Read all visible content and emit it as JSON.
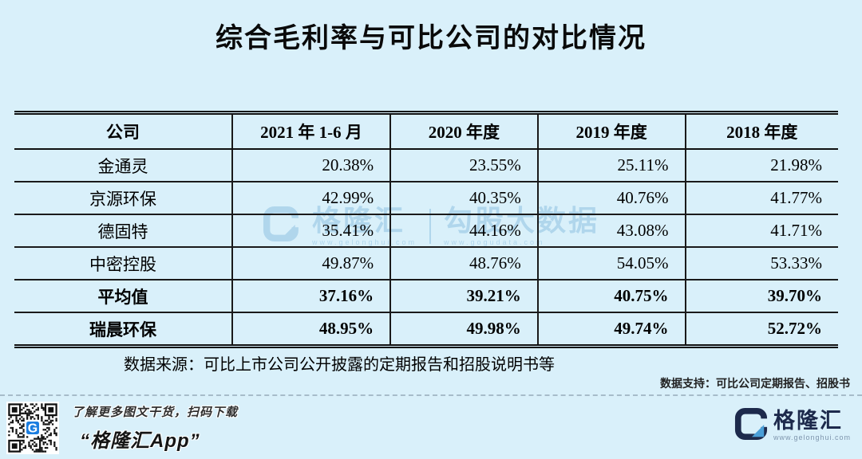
{
  "page": {
    "title": "综合毛利率与可比公司的对比情况",
    "background_color": "#d9f0fa"
  },
  "table": {
    "columns": [
      "公司",
      "2021 年 1-6 月",
      "2020 年度",
      "2019 年度",
      "2018 年度"
    ],
    "rows": [
      {
        "company": "金通灵",
        "values": [
          "20.38%",
          "23.55%",
          "25.11%",
          "21.98%"
        ],
        "bold": false
      },
      {
        "company": "京源环保",
        "values": [
          "42.99%",
          "40.35%",
          "40.76%",
          "41.77%"
        ],
        "bold": false
      },
      {
        "company": "德固特",
        "values": [
          "35.41%",
          "44.16%",
          "43.08%",
          "41.71%"
        ],
        "bold": false
      },
      {
        "company": "中密控股",
        "values": [
          "49.87%",
          "48.76%",
          "54.05%",
          "53.33%"
        ],
        "bold": false
      },
      {
        "company": "平均值",
        "values": [
          "37.16%",
          "39.21%",
          "40.75%",
          "39.70%"
        ],
        "bold": true
      },
      {
        "company": "瑞晨环保",
        "values": [
          "48.95%",
          "49.98%",
          "49.74%",
          "52.72%"
        ],
        "bold": true
      }
    ],
    "source_note": "数据来源：可比上市公司公开披露的定期报告和招股说明书等"
  },
  "support_note": "数据支持：可比公司定期报告、招股书",
  "watermark": {
    "brand_name": "格隆汇",
    "brand_url": "www.gelonghui.com",
    "product_name": "勾股大数据",
    "product_url": "www.gogudata.com"
  },
  "footer": {
    "caption_line1": "了解更多图文干货，扫码下载",
    "caption_line2": "“格隆汇App”",
    "brand_name": "格隆汇",
    "brand_url": "www.gelonghui.com",
    "qr_logo_letter": "G"
  },
  "colors": {
    "background": "#d9f0fa",
    "table_line": "#1a1a1a",
    "watermark_blue": "#8fc2e2",
    "logo_navy": "#1d2a4c",
    "logo_accent": "#4a9fd8",
    "qr_logo_blue": "#1b7de0"
  },
  "chart_data": {
    "type": "table",
    "title": "综合毛利率与可比公司的对比情况",
    "columns": [
      "公司",
      "2021 年 1-6 月",
      "2020 年度",
      "2019 年度",
      "2018 年度"
    ],
    "rows": [
      [
        "金通灵",
        "20.38%",
        "23.55%",
        "25.11%",
        "21.98%"
      ],
      [
        "京源环保",
        "42.99%",
        "40.35%",
        "40.76%",
        "41.77%"
      ],
      [
        "德固特",
        "35.41%",
        "44.16%",
        "43.08%",
        "41.71%"
      ],
      [
        "中密控股",
        "49.87%",
        "48.76%",
        "54.05%",
        "53.33%"
      ],
      [
        "平均值",
        "37.16%",
        "39.21%",
        "40.75%",
        "39.70%"
      ],
      [
        "瑞晨环保",
        "48.95%",
        "49.98%",
        "49.74%",
        "52.72%"
      ]
    ],
    "bold_rows": [
      "平均值",
      "瑞晨环保"
    ],
    "source": "数据来源：可比上市公司公开披露的定期报告和招股说明书等",
    "data_support": "数据支持：可比公司定期报告、招股书"
  }
}
